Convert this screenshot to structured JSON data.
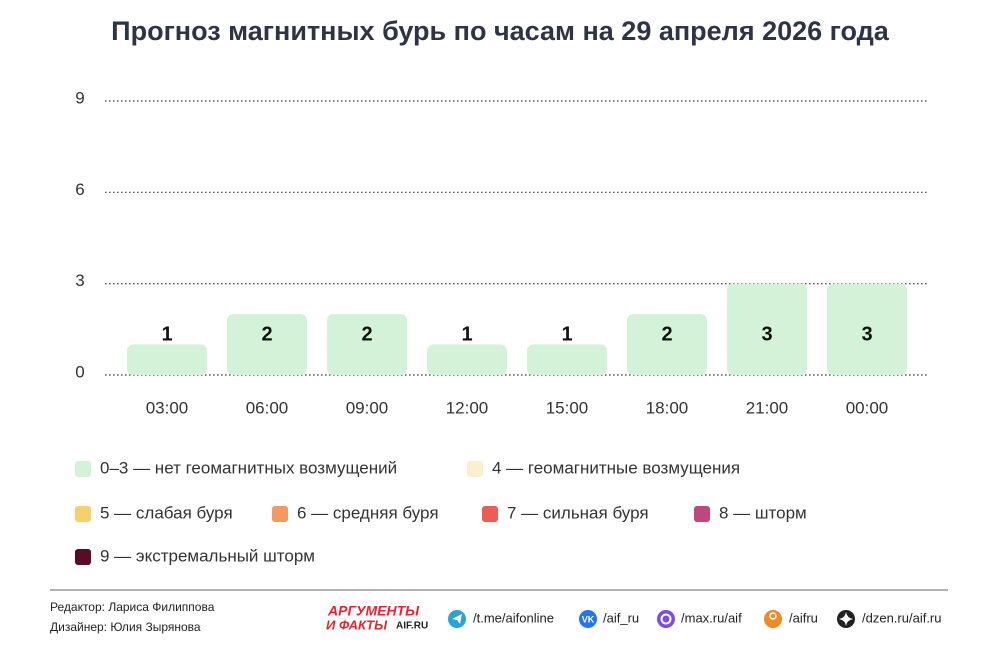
{
  "chart_data": {
    "type": "bar",
    "title": "Прогноз магнитных бурь по часам на 29 апреля 2026 года",
    "categories": [
      "03:00",
      "06:00",
      "09:00",
      "12:00",
      "15:00",
      "18:00",
      "21:00",
      "00:00"
    ],
    "values": [
      1,
      2,
      2,
      1,
      1,
      2,
      3,
      3
    ],
    "color": "#d4f2d7",
    "ylim": [
      0,
      9
    ],
    "yticks": [
      0,
      3,
      6,
      9
    ],
    "grid": true,
    "legend": [
      {
        "label": "0–3 — нет геомагнитных возмущений",
        "color": "#d4f2d7"
      },
      {
        "label": "4 — геомагнитные возмущения",
        "color": "#fcefd0"
      },
      {
        "label": "5 — слабая буря",
        "color": "#f6d06a"
      },
      {
        "label": "6 — средняя буря",
        "color": "#f39a63"
      },
      {
        "label": "7 — сильная буря",
        "color": "#ec5d55"
      },
      {
        "label": "8 — шторм",
        "color": "#c2457f"
      },
      {
        "label": "9 — экстремальный шторм",
        "color": "#5a0c25"
      }
    ]
  },
  "footer": {
    "editor": "Редактор: Лариса Филиппова",
    "designer": "Дизайнер: Юлия Зырянова",
    "logo": [
      "АРГУМЕНТЫ",
      "И ФАКТЫ",
      "AIF.RU"
    ],
    "links": [
      "/t.me/aifonline",
      "/aif_ru",
      "/max.ru/aif",
      "/aifru",
      "/dzen.ru/aif.ru"
    ]
  }
}
